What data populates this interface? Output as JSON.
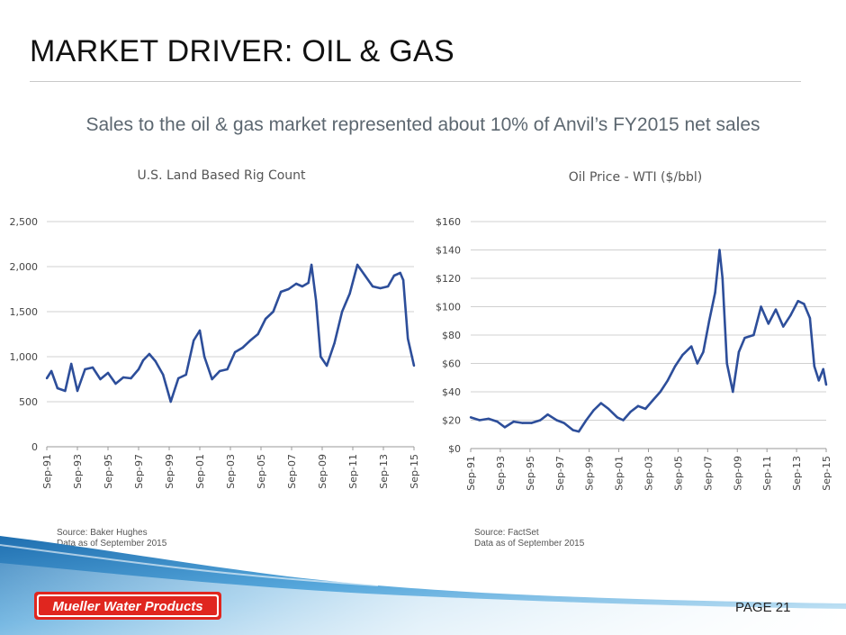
{
  "slide": {
    "title": "MARKET DRIVER: OIL & GAS",
    "subtitle": "Sales to the oil & gas market represented about 10% of Anvil’s FY2015 net sales",
    "page_label": "PAGE 21",
    "logo_text": "Mueller Water Products"
  },
  "sources": {
    "left_line1": "Source: Baker Hughes",
    "left_line2": "Data as of September 2015",
    "right_line1": "Source: FactSet",
    "right_line2": "Data as of September 2015"
  },
  "colors": {
    "series": "#2d4e9a",
    "grid": "#d0d0d0",
    "wave_dark": "#2b7fc0",
    "wave_light": "#bfe3f7",
    "logo_red": "#e0261f"
  },
  "chart_data": [
    {
      "type": "line",
      "title": "U.S. Land Based Rig Count",
      "categories": [
        "Sep-91",
        "Sep-93",
        "Sep-95",
        "Sep-97",
        "Sep-99",
        "Sep-01",
        "Sep-03",
        "Sep-05",
        "Sep-07",
        "Sep-09",
        "Sep-11",
        "Sep-13",
        "Sep-15"
      ],
      "ylim": [
        0,
        2500
      ],
      "yticks": [
        0,
        500,
        1000,
        1500,
        2000,
        2500
      ],
      "ytick_labels": [
        "0",
        "500",
        "1,000",
        "1,500",
        "2,000",
        "2,500"
      ],
      "grid": true,
      "series": [
        {
          "x": [
            1991.7,
            1992.0,
            1992.4,
            1992.9,
            1993.3,
            1993.7,
            1994.2,
            1994.7,
            1995.2,
            1995.7,
            1996.2,
            1996.7,
            1997.2,
            1997.7,
            1998.0,
            1998.4,
            1998.8,
            1999.3,
            1999.8,
            2000.3,
            2000.8,
            2001.3,
            2001.7,
            2002.0,
            2002.5,
            2003.0,
            2003.5,
            2004.0,
            2004.5,
            2005.0,
            2005.5,
            2006.0,
            2006.5,
            2007.0,
            2007.5,
            2008.0,
            2008.4,
            2008.8,
            2009.0,
            2009.3,
            2009.6,
            2010.0,
            2010.5,
            2011.0,
            2011.5,
            2012.0,
            2012.5,
            2013.0,
            2013.5,
            2014.0,
            2014.4,
            2014.8,
            2015.0,
            2015.3,
            2015.7
          ],
          "y": [
            760,
            840,
            650,
            620,
            920,
            620,
            860,
            880,
            750,
            820,
            700,
            770,
            760,
            860,
            960,
            1030,
            950,
            800,
            500,
            760,
            800,
            1180,
            1290,
            1000,
            750,
            840,
            860,
            1050,
            1100,
            1180,
            1250,
            1420,
            1500,
            1720,
            1750,
            1810,
            1780,
            1820,
            2020,
            1620,
            1000,
            900,
            1150,
            1500,
            1700,
            2020,
            1900,
            1780,
            1760,
            1780,
            1900,
            1930,
            1850,
            1200,
            900
          ]
        }
      ]
    },
    {
      "type": "line",
      "title": "Oil Price - WTI ($/bbl)",
      "categories": [
        "Sep-91",
        "Sep-93",
        "Sep-95",
        "Sep-97",
        "Sep-99",
        "Sep-01",
        "Sep-03",
        "Sep-05",
        "Sep-07",
        "Sep-09",
        "Sep-11",
        "Sep-13",
        "Sep-15"
      ],
      "ylim": [
        0,
        160
      ],
      "yticks": [
        0,
        20,
        40,
        60,
        80,
        100,
        120,
        140,
        160
      ],
      "ytick_labels": [
        "$0",
        "$20",
        "$40",
        "$60",
        "$80",
        "$100",
        "$120",
        "$140",
        "$160"
      ],
      "grid": true,
      "series": [
        {
          "x": [
            1991.7,
            1992.3,
            1992.9,
            1993.5,
            1994.0,
            1994.6,
            1995.2,
            1995.8,
            1996.4,
            1996.9,
            1997.5,
            1998.0,
            1998.6,
            1999.0,
            1999.5,
            2000.0,
            2000.5,
            2001.0,
            2001.6,
            2002.0,
            2002.5,
            2003.0,
            2003.5,
            2004.0,
            2004.5,
            2005.0,
            2005.5,
            2006.0,
            2006.6,
            2007.0,
            2007.4,
            2007.8,
            2008.2,
            2008.5,
            2008.7,
            2009.0,
            2009.4,
            2009.8,
            2010.2,
            2010.8,
            2011.3,
            2011.8,
            2012.3,
            2012.8,
            2013.3,
            2013.8,
            2014.2,
            2014.6,
            2014.9,
            2015.2,
            2015.5,
            2015.7
          ],
          "y": [
            22,
            20,
            21,
            19,
            15,
            19,
            18,
            18,
            20,
            24,
            20,
            18,
            13,
            12,
            20,
            27,
            32,
            28,
            22,
            20,
            26,
            30,
            28,
            34,
            40,
            48,
            58,
            66,
            72,
            60,
            68,
            90,
            110,
            140,
            120,
            60,
            40,
            68,
            78,
            80,
            100,
            88,
            98,
            86,
            94,
            104,
            102,
            92,
            58,
            48,
            56,
            45
          ]
        }
      ]
    }
  ]
}
